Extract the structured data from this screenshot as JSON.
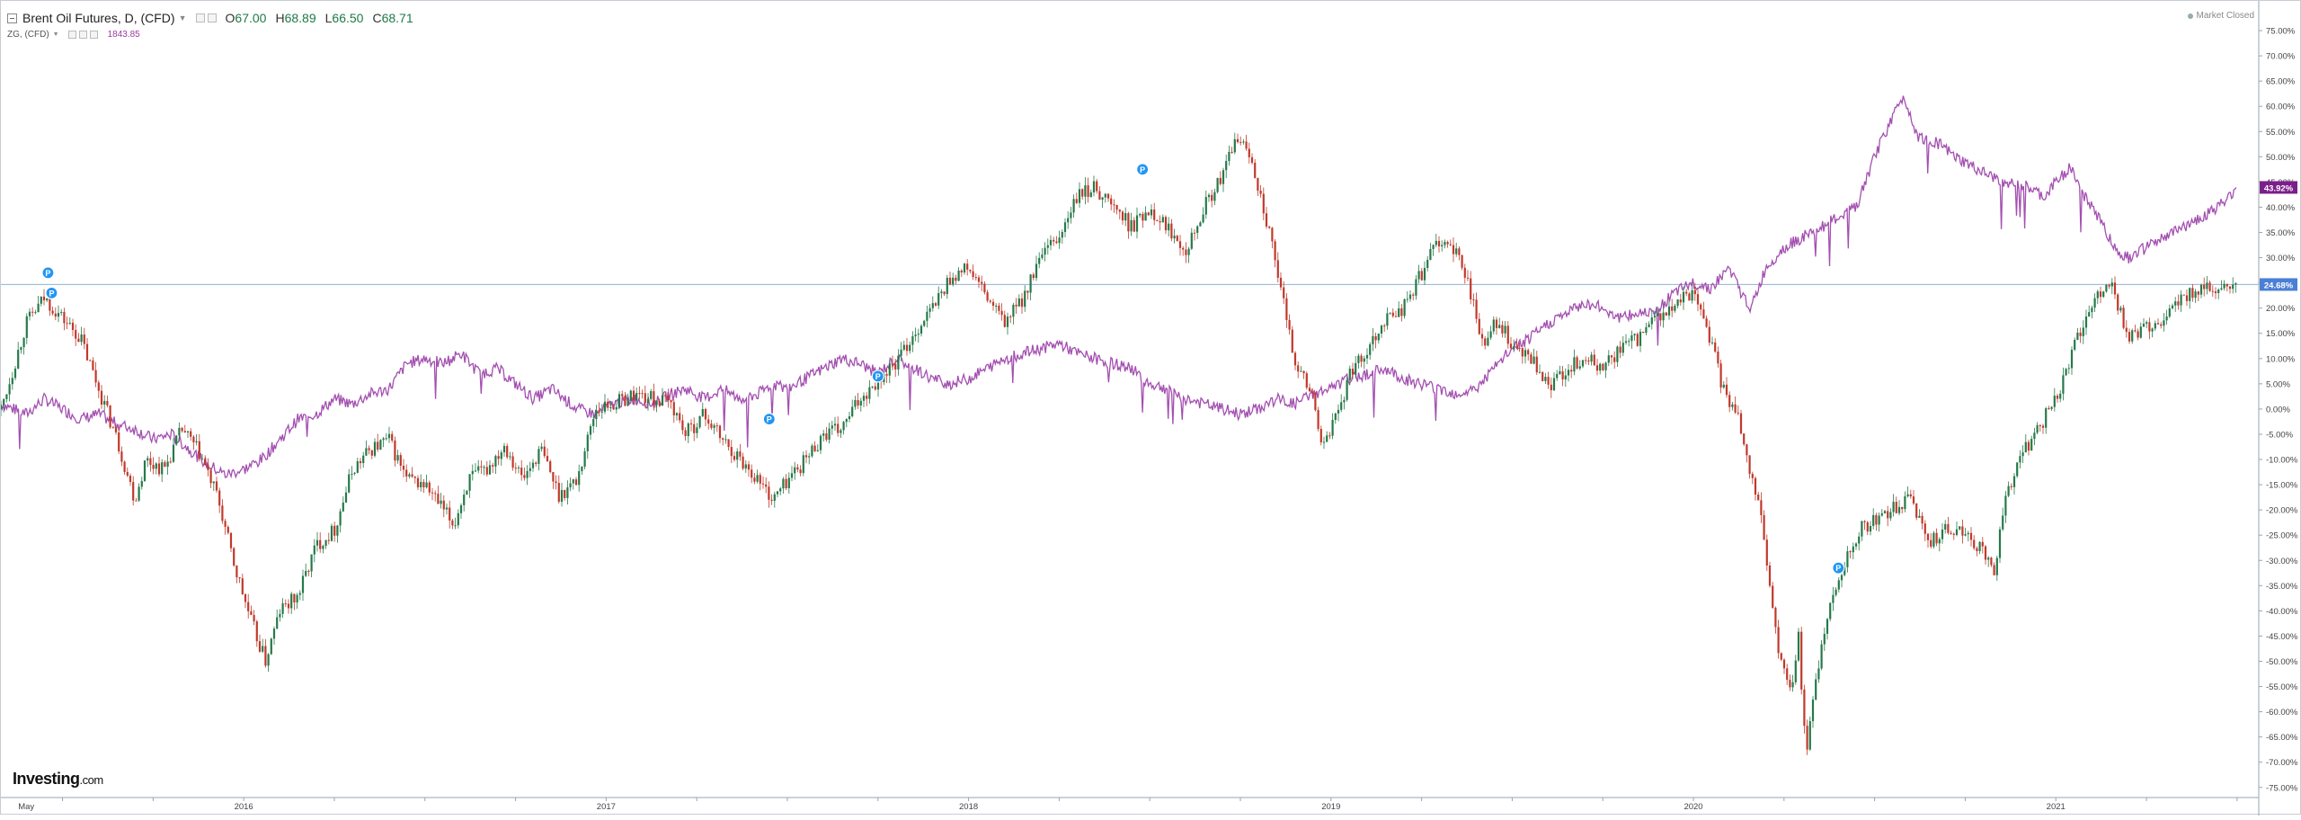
{
  "legend": {
    "main": {
      "title": "Brent Oil Futures, D, (CFD)",
      "ohlc": [
        {
          "key": "O",
          "value": "67.00"
        },
        {
          "key": "H",
          "value": "68.89"
        },
        {
          "key": "L",
          "value": "66.50"
        },
        {
          "key": "C",
          "value": "68.71"
        }
      ]
    },
    "compare": {
      "title": "ZG, (CFD)",
      "value": "1843.85"
    }
  },
  "market_status": "Market Closed",
  "watermark": {
    "brand": "Investing",
    "suffix": ".com"
  },
  "colors": {
    "up": "#26794a",
    "down": "#c0392b",
    "compare_line": "#a34fb0",
    "hline": "#8fb3d9",
    "marker": "#2196f3",
    "badge_main": "#4a7fd6",
    "badge_compare": "#7b1f8a"
  },
  "chart_data": {
    "type": "line",
    "y_axis": {
      "unit": "%",
      "min": -77,
      "max": 80,
      "ticks": [
        75,
        70,
        65,
        60,
        55,
        50,
        45,
        40,
        35,
        30,
        25,
        20,
        15,
        10,
        5,
        0,
        -5,
        -10,
        -15,
        -20,
        -25,
        -30,
        -35,
        -40,
        -45,
        -50,
        -55,
        -60,
        -65,
        -70,
        -75
      ],
      "tick_labels": [
        "75.00%",
        "70.00%",
        "65.00%",
        "60.00%",
        "55.00%",
        "50.00%",
        "45.00%",
        "40.00%",
        "35.00%",
        "30.00%",
        "25.00%",
        "20.00%",
        "15.00%",
        "10.00%",
        "5.00%",
        "0.00%",
        "-5.00%",
        "-10.00%",
        "-15.00%",
        "-20.00%",
        "-25.00%",
        "-30.00%",
        "-35.00%",
        "-40.00%",
        "-45.00%",
        "-50.00%",
        "-55.00%",
        "-60.00%",
        "-65.00%",
        "-70.00%",
        "-75.00%"
      ]
    },
    "x_axis": {
      "start": 2015.33,
      "end": 2021.55,
      "labels": [
        {
          "t": 2015.4,
          "label": "May"
        },
        {
          "t": 2016.0,
          "label": "2016"
        },
        {
          "t": 2017.0,
          "label": "2017"
        },
        {
          "t": 2018.0,
          "label": "2018"
        },
        {
          "t": 2019.0,
          "label": "2019"
        },
        {
          "t": 2020.0,
          "label": "2020"
        },
        {
          "t": 2021.0,
          "label": "2021"
        }
      ]
    },
    "hline": 24.68,
    "series": [
      {
        "name": "Brent Oil Futures",
        "style": "candles",
        "current_label": "24.68%",
        "points": [
          [
            2015.33,
            0
          ],
          [
            2015.36,
            7
          ],
          [
            2015.4,
            17
          ],
          [
            2015.45,
            22
          ],
          [
            2015.5,
            18
          ],
          [
            2015.55,
            14
          ],
          [
            2015.6,
            4
          ],
          [
            2015.65,
            -6
          ],
          [
            2015.7,
            -18
          ],
          [
            2015.73,
            -10
          ],
          [
            2015.78,
            -12
          ],
          [
            2015.83,
            -4
          ],
          [
            2015.88,
            -9
          ],
          [
            2015.93,
            -18
          ],
          [
            2015.97,
            -30
          ],
          [
            2016.02,
            -42
          ],
          [
            2016.06,
            -50
          ],
          [
            2016.1,
            -40
          ],
          [
            2016.15,
            -37
          ],
          [
            2016.2,
            -27
          ],
          [
            2016.25,
            -24
          ],
          [
            2016.3,
            -12
          ],
          [
            2016.35,
            -8
          ],
          [
            2016.4,
            -6
          ],
          [
            2016.45,
            -14
          ],
          [
            2016.5,
            -15
          ],
          [
            2016.55,
            -20
          ],
          [
            2016.58,
            -23
          ],
          [
            2016.62,
            -14
          ],
          [
            2016.67,
            -12
          ],
          [
            2016.72,
            -7
          ],
          [
            2016.77,
            -14
          ],
          [
            2016.82,
            -8
          ],
          [
            2016.87,
            -17
          ],
          [
            2016.92,
            -14
          ],
          [
            2016.97,
            0
          ],
          [
            2017.02,
            1
          ],
          [
            2017.08,
            3
          ],
          [
            2017.13,
            2
          ],
          [
            2017.18,
            1
          ],
          [
            2017.22,
            -5
          ],
          [
            2017.27,
            -1
          ],
          [
            2017.32,
            -6
          ],
          [
            2017.37,
            -10
          ],
          [
            2017.42,
            -14
          ],
          [
            2017.46,
            -18
          ],
          [
            2017.5,
            -14
          ],
          [
            2017.55,
            -10
          ],
          [
            2017.6,
            -5
          ],
          [
            2017.65,
            -4
          ],
          [
            2017.7,
            2
          ],
          [
            2017.75,
            6
          ],
          [
            2017.8,
            9
          ],
          [
            2017.85,
            15
          ],
          [
            2017.9,
            20
          ],
          [
            2017.95,
            26
          ],
          [
            2018.0,
            28
          ],
          [
            2018.05,
            22
          ],
          [
            2018.1,
            17
          ],
          [
            2018.15,
            22
          ],
          [
            2018.2,
            30
          ],
          [
            2018.25,
            34
          ],
          [
            2018.3,
            42
          ],
          [
            2018.35,
            44
          ],
          [
            2018.4,
            40
          ],
          [
            2018.45,
            36
          ],
          [
            2018.5,
            40
          ],
          [
            2018.55,
            36
          ],
          [
            2018.6,
            32
          ],
          [
            2018.65,
            40
          ],
          [
            2018.7,
            46
          ],
          [
            2018.74,
            54
          ],
          [
            2018.78,
            50
          ],
          [
            2018.82,
            38
          ],
          [
            2018.86,
            24
          ],
          [
            2018.9,
            10
          ],
          [
            2018.95,
            2
          ],
          [
            2018.98,
            -8
          ],
          [
            2019.02,
            0
          ],
          [
            2019.06,
            8
          ],
          [
            2019.1,
            12
          ],
          [
            2019.15,
            18
          ],
          [
            2019.2,
            20
          ],
          [
            2019.25,
            27
          ],
          [
            2019.3,
            34
          ],
          [
            2019.35,
            30
          ],
          [
            2019.38,
            25
          ],
          [
            2019.42,
            12
          ],
          [
            2019.46,
            18
          ],
          [
            2019.5,
            12
          ],
          [
            2019.55,
            10
          ],
          [
            2019.6,
            4
          ],
          [
            2019.65,
            8
          ],
          [
            2019.7,
            10
          ],
          [
            2019.75,
            8
          ],
          [
            2019.8,
            12
          ],
          [
            2019.85,
            14
          ],
          [
            2019.9,
            18
          ],
          [
            2019.95,
            20
          ],
          [
            2020.0,
            24
          ],
          [
            2020.03,
            18
          ],
          [
            2020.06,
            10
          ],
          [
            2020.09,
            2
          ],
          [
            2020.12,
            0
          ],
          [
            2020.15,
            -10
          ],
          [
            2020.18,
            -18
          ],
          [
            2020.21,
            -35
          ],
          [
            2020.24,
            -50
          ],
          [
            2020.27,
            -57
          ],
          [
            2020.29,
            -45
          ],
          [
            2020.31,
            -68
          ],
          [
            2020.33,
            -58
          ],
          [
            2020.36,
            -44
          ],
          [
            2020.39,
            -36
          ],
          [
            2020.42,
            -30
          ],
          [
            2020.46,
            -24
          ],
          [
            2020.5,
            -22
          ],
          [
            2020.55,
            -20
          ],
          [
            2020.6,
            -18
          ],
          [
            2020.65,
            -26
          ],
          [
            2020.7,
            -24
          ],
          [
            2020.75,
            -25
          ],
          [
            2020.8,
            -28
          ],
          [
            2020.83,
            -32
          ],
          [
            2020.86,
            -18
          ],
          [
            2020.9,
            -10
          ],
          [
            2020.95,
            -4
          ],
          [
            2021.0,
            2
          ],
          [
            2021.05,
            12
          ],
          [
            2021.1,
            20
          ],
          [
            2021.15,
            26
          ],
          [
            2021.2,
            14
          ],
          [
            2021.25,
            16
          ],
          [
            2021.3,
            18
          ],
          [
            2021.35,
            22
          ],
          [
            2021.4,
            24
          ],
          [
            2021.45,
            23
          ],
          [
            2021.5,
            24.68
          ]
        ]
      },
      {
        "name": "ZG",
        "style": "line",
        "current_label": "43.92%",
        "points": [
          [
            2015.33,
            1
          ],
          [
            2015.4,
            -1
          ],
          [
            2015.45,
            2
          ],
          [
            2015.5,
            0
          ],
          [
            2015.55,
            -2
          ],
          [
            2015.6,
            -1
          ],
          [
            2015.65,
            -3
          ],
          [
            2015.7,
            -4
          ],
          [
            2015.75,
            -6
          ],
          [
            2015.8,
            -5
          ],
          [
            2015.85,
            -8
          ],
          [
            2015.9,
            -11
          ],
          [
            2015.95,
            -13
          ],
          [
            2016.0,
            -12
          ],
          [
            2016.05,
            -10
          ],
          [
            2016.1,
            -6
          ],
          [
            2016.15,
            -2
          ],
          [
            2016.2,
            -1
          ],
          [
            2016.25,
            2
          ],
          [
            2016.3,
            1
          ],
          [
            2016.35,
            3
          ],
          [
            2016.4,
            4
          ],
          [
            2016.45,
            9
          ],
          [
            2016.5,
            10
          ],
          [
            2016.55,
            9
          ],
          [
            2016.6,
            11
          ],
          [
            2016.65,
            7
          ],
          [
            2016.7,
            8
          ],
          [
            2016.75,
            5
          ],
          [
            2016.8,
            2
          ],
          [
            2016.85,
            4
          ],
          [
            2016.92,
            0
          ],
          [
            2016.97,
            -1
          ],
          [
            2017.02,
            1
          ],
          [
            2017.08,
            2
          ],
          [
            2017.13,
            1
          ],
          [
            2017.18,
            3
          ],
          [
            2017.22,
            4
          ],
          [
            2017.27,
            2
          ],
          [
            2017.32,
            4
          ],
          [
            2017.37,
            2
          ],
          [
            2017.42,
            3
          ],
          [
            2017.46,
            5
          ],
          [
            2017.5,
            4
          ],
          [
            2017.55,
            6
          ],
          [
            2017.6,
            8
          ],
          [
            2017.65,
            10
          ],
          [
            2017.7,
            9
          ],
          [
            2017.75,
            7
          ],
          [
            2017.8,
            10
          ],
          [
            2017.85,
            8
          ],
          [
            2017.9,
            6
          ],
          [
            2017.95,
            5
          ],
          [
            2018.0,
            6
          ],
          [
            2018.05,
            8
          ],
          [
            2018.1,
            10
          ],
          [
            2018.15,
            11
          ],
          [
            2018.2,
            12
          ],
          [
            2018.25,
            13
          ],
          [
            2018.3,
            11
          ],
          [
            2018.35,
            10
          ],
          [
            2018.4,
            9
          ],
          [
            2018.45,
            8
          ],
          [
            2018.5,
            5
          ],
          [
            2018.55,
            4
          ],
          [
            2018.6,
            2
          ],
          [
            2018.65,
            1
          ],
          [
            2018.7,
            0
          ],
          [
            2018.75,
            -1
          ],
          [
            2018.8,
            0
          ],
          [
            2018.85,
            2
          ],
          [
            2018.9,
            1
          ],
          [
            2018.95,
            3
          ],
          [
            2019.0,
            4
          ],
          [
            2019.05,
            6
          ],
          [
            2019.1,
            7
          ],
          [
            2019.15,
            8
          ],
          [
            2019.2,
            6
          ],
          [
            2019.25,
            5
          ],
          [
            2019.3,
            4
          ],
          [
            2019.35,
            3
          ],
          [
            2019.4,
            4
          ],
          [
            2019.45,
            8
          ],
          [
            2019.5,
            12
          ],
          [
            2019.55,
            14
          ],
          [
            2019.6,
            17
          ],
          [
            2019.65,
            19
          ],
          [
            2019.7,
            21
          ],
          [
            2019.75,
            20
          ],
          [
            2019.8,
            18
          ],
          [
            2019.85,
            19
          ],
          [
            2019.9,
            20
          ],
          [
            2019.95,
            23
          ],
          [
            2020.0,
            25
          ],
          [
            2020.05,
            24
          ],
          [
            2020.1,
            28
          ],
          [
            2020.13,
            23
          ],
          [
            2020.16,
            20
          ],
          [
            2020.2,
            28
          ],
          [
            2020.25,
            32
          ],
          [
            2020.3,
            34
          ],
          [
            2020.35,
            36
          ],
          [
            2020.4,
            38
          ],
          [
            2020.45,
            40
          ],
          [
            2020.5,
            50
          ],
          [
            2020.55,
            58
          ],
          [
            2020.58,
            62
          ],
          [
            2020.62,
            54
          ],
          [
            2020.67,
            53
          ],
          [
            2020.72,
            50
          ],
          [
            2020.77,
            48
          ],
          [
            2020.82,
            46
          ],
          [
            2020.87,
            45
          ],
          [
            2020.92,
            44
          ],
          [
            2020.97,
            42
          ],
          [
            2021.0,
            45
          ],
          [
            2021.04,
            48
          ],
          [
            2021.08,
            42
          ],
          [
            2021.12,
            38
          ],
          [
            2021.16,
            32
          ],
          [
            2021.2,
            30
          ],
          [
            2021.25,
            32
          ],
          [
            2021.3,
            34
          ],
          [
            2021.35,
            36
          ],
          [
            2021.4,
            38
          ],
          [
            2021.45,
            40
          ],
          [
            2021.5,
            43.92
          ]
        ]
      }
    ],
    "markers": [
      {
        "t": 2015.46,
        "y": 27,
        "label": "P"
      },
      {
        "t": 2015.47,
        "y": 23,
        "label": "P"
      },
      {
        "t": 2017.45,
        "y": -2,
        "label": "P"
      },
      {
        "t": 2017.75,
        "y": 6.5,
        "label": "P"
      },
      {
        "t": 2018.48,
        "y": 47.5,
        "label": "P"
      },
      {
        "t": 2020.4,
        "y": -31.5,
        "label": "P"
      }
    ]
  }
}
